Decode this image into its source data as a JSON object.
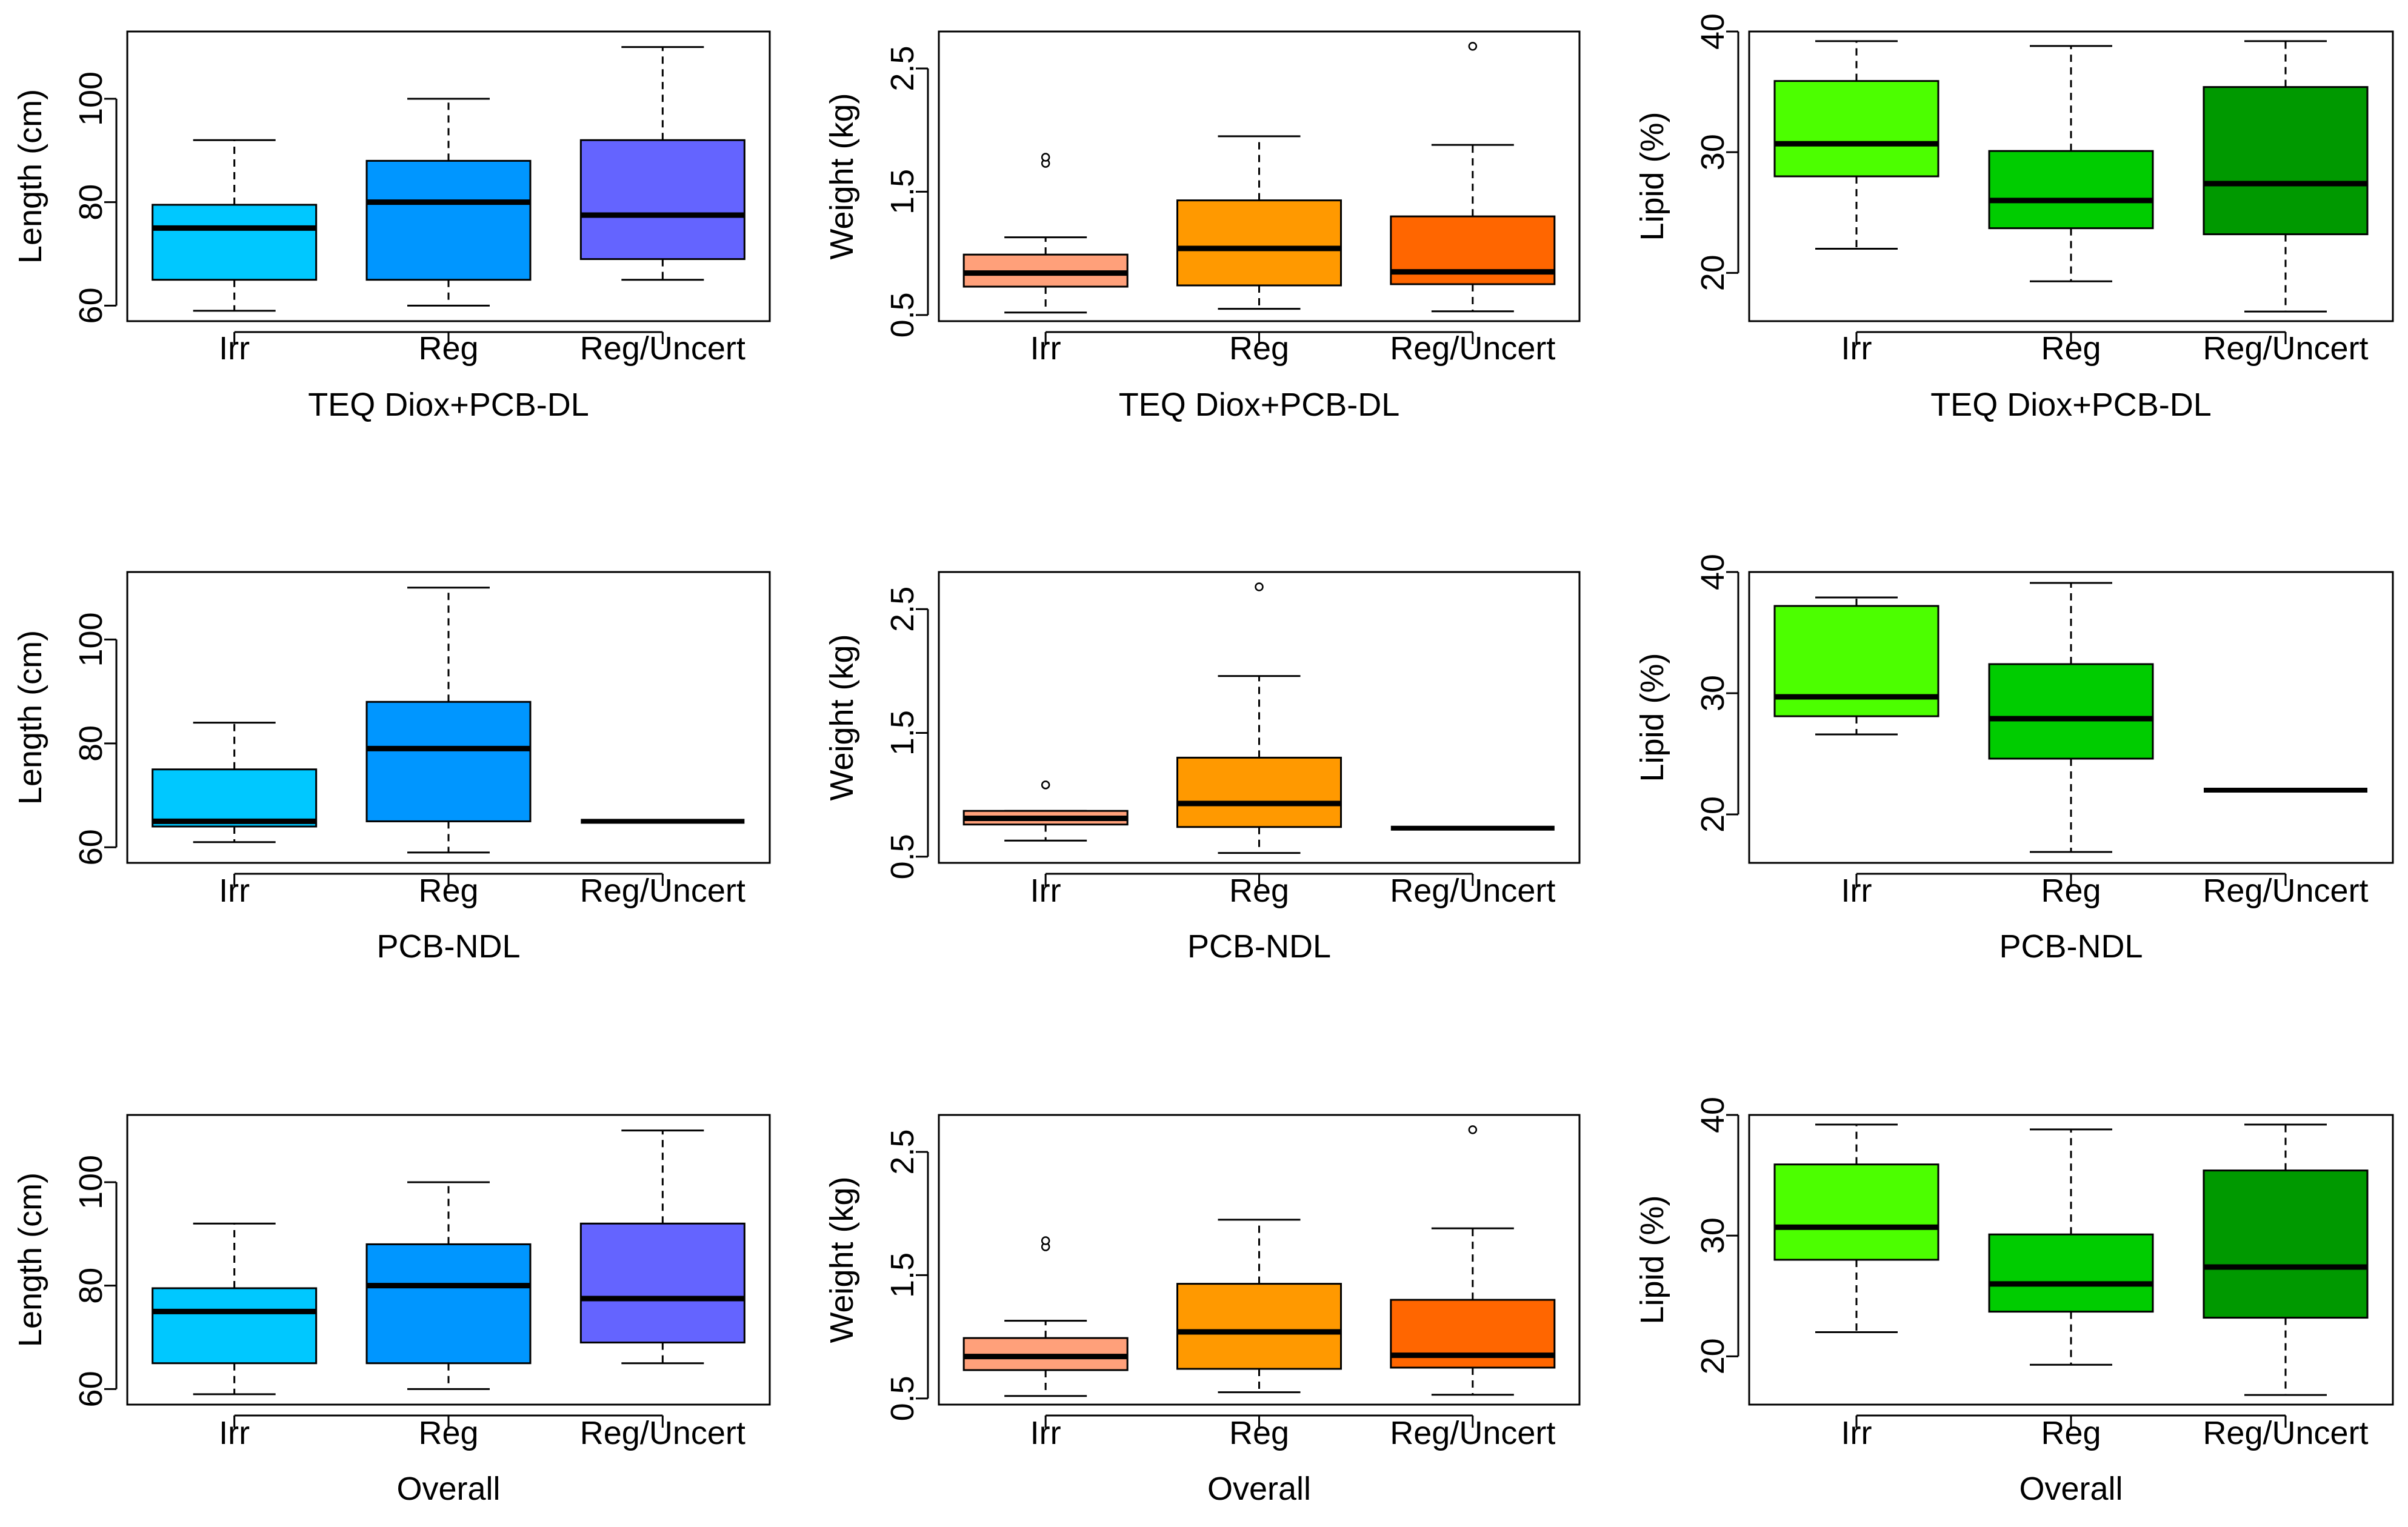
{
  "chart_data": [
    {
      "type": "boxplot",
      "row": 0,
      "col": 0,
      "xlabel": "TEQ Diox+PCB-DL",
      "ylabel": "Length (cm)",
      "ylim": [
        57,
        113
      ],
      "yticks": [
        60,
        80,
        100
      ],
      "ytick_labels": [
        "60",
        "80",
        "100"
      ],
      "categories": [
        "Irr",
        "Reg",
        "Reg/Uncert"
      ],
      "colors": [
        "#00C8FF",
        "#0096FF",
        "#6464FF"
      ],
      "boxes": [
        {
          "whisker_low": 59,
          "q1": 65,
          "median": 75,
          "q3": 79.5,
          "whisker_high": 92,
          "outliers": []
        },
        {
          "whisker_low": 60,
          "q1": 65,
          "median": 80,
          "q3": 88,
          "whisker_high": 100,
          "outliers": []
        },
        {
          "whisker_low": 65,
          "q1": 69,
          "median": 77.5,
          "q3": 92,
          "whisker_high": 110,
          "outliers": []
        }
      ]
    },
    {
      "type": "boxplot",
      "row": 0,
      "col": 1,
      "xlabel": "TEQ Diox+PCB-DL",
      "ylabel": "Weight (kg)",
      "ylim": [
        0.45,
        2.8
      ],
      "yticks": [
        0.5,
        1.5,
        2.5
      ],
      "ytick_labels": [
        "0.5",
        "1.5",
        "2.5"
      ],
      "categories": [
        "Irr",
        "Reg",
        "Reg/Uncert"
      ],
      "colors": [
        "#FFA07A",
        "#FF9900",
        "#FF6600"
      ],
      "boxes": [
        {
          "whisker_low": 0.52,
          "q1": 0.73,
          "median": 0.84,
          "q3": 0.99,
          "whisker_high": 1.13,
          "outliers": [
            1.73,
            1.78
          ]
        },
        {
          "whisker_low": 0.55,
          "q1": 0.74,
          "median": 1.04,
          "q3": 1.43,
          "whisker_high": 1.95,
          "outliers": []
        },
        {
          "whisker_low": 0.53,
          "q1": 0.75,
          "median": 0.85,
          "q3": 1.3,
          "whisker_high": 1.88,
          "outliers": [
            2.68
          ]
        }
      ]
    },
    {
      "type": "boxplot",
      "row": 0,
      "col": 2,
      "xlabel": "TEQ Diox+PCB-DL",
      "ylabel": "Lipid (%)",
      "ylim": [
        16,
        40
      ],
      "yticks": [
        20,
        30,
        40
      ],
      "ytick_labels": [
        "20",
        "30",
        "40"
      ],
      "categories": [
        "Irr",
        "Reg",
        "Reg/Uncert"
      ],
      "colors": [
        "#4CFF00",
        "#00CC00",
        "#009900"
      ],
      "boxes": [
        {
          "whisker_low": 22,
          "q1": 28,
          "median": 30.7,
          "q3": 35.9,
          "whisker_high": 39.2,
          "outliers": []
        },
        {
          "whisker_low": 19.3,
          "q1": 23.7,
          "median": 26,
          "q3": 30.1,
          "whisker_high": 38.8,
          "outliers": []
        },
        {
          "whisker_low": 16.8,
          "q1": 23.2,
          "median": 27.4,
          "q3": 35.4,
          "whisker_high": 39.2,
          "outliers": []
        }
      ]
    },
    {
      "type": "boxplot",
      "row": 1,
      "col": 0,
      "xlabel": "PCB-NDL",
      "ylabel": "Length (cm)",
      "ylim": [
        57,
        113
      ],
      "yticks": [
        60,
        80,
        100
      ],
      "ytick_labels": [
        "60",
        "80",
        "100"
      ],
      "categories": [
        "Irr",
        "Reg",
        "Reg/Uncert"
      ],
      "colors": [
        "#00C8FF",
        "#0096FF",
        "#6464FF"
      ],
      "boxes": [
        {
          "whisker_low": 61,
          "q1": 64,
          "median": 65,
          "q3": 75,
          "whisker_high": 84,
          "outliers": []
        },
        {
          "whisker_low": 59,
          "q1": 65,
          "median": 79,
          "q3": 88,
          "whisker_high": 110,
          "outliers": []
        },
        {
          "whisker_low": 65,
          "q1": 65,
          "median": 65,
          "q3": 65,
          "whisker_high": 65,
          "outliers": []
        }
      ]
    },
    {
      "type": "boxplot",
      "row": 1,
      "col": 1,
      "xlabel": "PCB-NDL",
      "ylabel": "Weight (kg)",
      "ylim": [
        0.45,
        2.8
      ],
      "yticks": [
        0.5,
        1.5,
        2.5
      ],
      "ytick_labels": [
        "0.5",
        "1.5",
        "2.5"
      ],
      "categories": [
        "Irr",
        "Reg",
        "Reg/Uncert"
      ],
      "colors": [
        "#FFA07A",
        "#FF9900",
        "#FF6600"
      ],
      "boxes": [
        {
          "whisker_low": 0.63,
          "q1": 0.76,
          "median": 0.81,
          "q3": 0.87,
          "whisker_high": 0.87,
          "outliers": [
            1.08
          ]
        },
        {
          "whisker_low": 0.53,
          "q1": 0.74,
          "median": 0.93,
          "q3": 1.3,
          "whisker_high": 1.96,
          "outliers": [
            2.68
          ]
        },
        {
          "whisker_low": 0.73,
          "q1": 0.73,
          "median": 0.73,
          "q3": 0.73,
          "whisker_high": 0.73,
          "outliers": []
        }
      ]
    },
    {
      "type": "boxplot",
      "row": 1,
      "col": 2,
      "xlabel": "PCB-NDL",
      "ylabel": "Lipid (%)",
      "ylim": [
        16,
        40
      ],
      "yticks": [
        20,
        30,
        40
      ],
      "ytick_labels": [
        "20",
        "30",
        "40"
      ],
      "categories": [
        "Irr",
        "Reg",
        "Reg/Uncert"
      ],
      "colors": [
        "#4CFF00",
        "#00CC00",
        "#009900"
      ],
      "boxes": [
        {
          "whisker_low": 26.6,
          "q1": 28.1,
          "median": 29.7,
          "q3": 37.2,
          "whisker_high": 37.9,
          "outliers": []
        },
        {
          "whisker_low": 16.9,
          "q1": 24.6,
          "median": 27.9,
          "q3": 32.4,
          "whisker_high": 39.1,
          "outliers": []
        },
        {
          "whisker_low": 22,
          "q1": 22,
          "median": 22,
          "q3": 22,
          "whisker_high": 22,
          "outliers": []
        }
      ]
    },
    {
      "type": "boxplot",
      "row": 2,
      "col": 0,
      "xlabel": "Overall",
      "ylabel": "Length (cm)",
      "ylim": [
        57,
        113
      ],
      "yticks": [
        60,
        80,
        100
      ],
      "ytick_labels": [
        "60",
        "80",
        "100"
      ],
      "categories": [
        "Irr",
        "Reg",
        "Reg/Uncert"
      ],
      "colors": [
        "#00C8FF",
        "#0096FF",
        "#6464FF"
      ],
      "boxes": [
        {
          "whisker_low": 59,
          "q1": 65,
          "median": 75,
          "q3": 79.5,
          "whisker_high": 92,
          "outliers": []
        },
        {
          "whisker_low": 60,
          "q1": 65,
          "median": 80,
          "q3": 88,
          "whisker_high": 100,
          "outliers": []
        },
        {
          "whisker_low": 65,
          "q1": 69,
          "median": 77.5,
          "q3": 92,
          "whisker_high": 110,
          "outliers": []
        }
      ]
    },
    {
      "type": "boxplot",
      "row": 2,
      "col": 1,
      "xlabel": "Overall",
      "ylabel": "Weight (kg)",
      "ylim": [
        0.45,
        2.8
      ],
      "yticks": [
        0.5,
        1.5,
        2.5
      ],
      "ytick_labels": [
        "0.5",
        "1.5",
        "2.5"
      ],
      "categories": [
        "Irr",
        "Reg",
        "Reg/Uncert"
      ],
      "colors": [
        "#FFA07A",
        "#FF9900",
        "#FF6600"
      ],
      "boxes": [
        {
          "whisker_low": 0.52,
          "q1": 0.73,
          "median": 0.84,
          "q3": 0.99,
          "whisker_high": 1.13,
          "outliers": [
            1.73,
            1.78
          ]
        },
        {
          "whisker_low": 0.55,
          "q1": 0.74,
          "median": 1.04,
          "q3": 1.43,
          "whisker_high": 1.95,
          "outliers": []
        },
        {
          "whisker_low": 0.53,
          "q1": 0.75,
          "median": 0.85,
          "q3": 1.3,
          "whisker_high": 1.88,
          "outliers": [
            2.68
          ]
        }
      ]
    },
    {
      "type": "boxplot",
      "row": 2,
      "col": 2,
      "xlabel": "Overall",
      "ylabel": "Lipid (%)",
      "ylim": [
        16,
        40
      ],
      "yticks": [
        20,
        30,
        40
      ],
      "ytick_labels": [
        "20",
        "30",
        "40"
      ],
      "categories": [
        "Irr",
        "Reg",
        "Reg/Uncert"
      ],
      "colors": [
        "#4CFF00",
        "#00CC00",
        "#009900"
      ],
      "boxes": [
        {
          "whisker_low": 22,
          "q1": 28,
          "median": 30.7,
          "q3": 35.9,
          "whisker_high": 39.2,
          "outliers": []
        },
        {
          "whisker_low": 19.3,
          "q1": 23.7,
          "median": 26,
          "q3": 30.1,
          "whisker_high": 38.8,
          "outliers": []
        },
        {
          "whisker_low": 16.8,
          "q1": 23.2,
          "median": 27.4,
          "q3": 35.4,
          "whisker_high": 39.2,
          "outliers": []
        }
      ]
    }
  ]
}
